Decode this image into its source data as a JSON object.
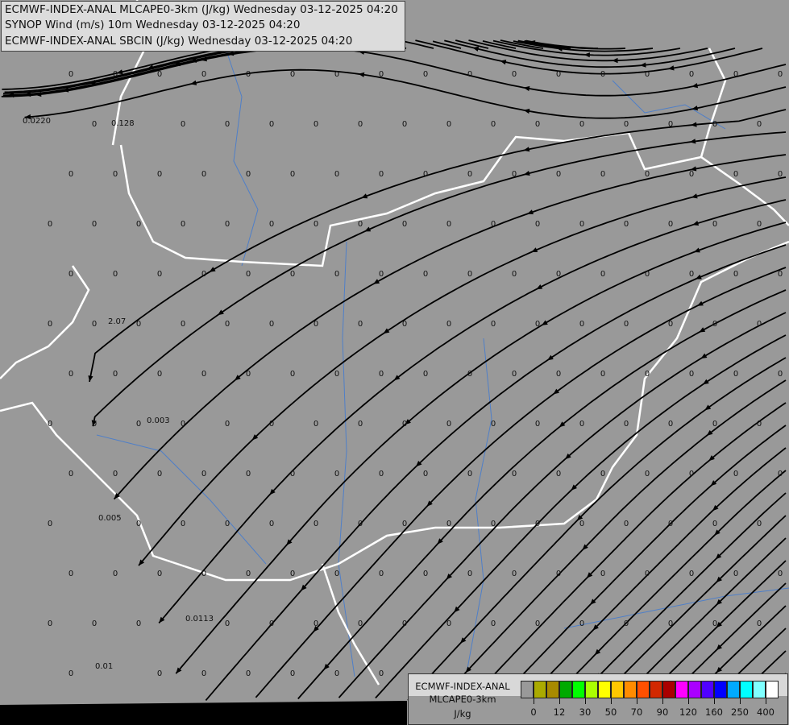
{
  "titles": [
    "ECMWF-INDEX-ANAL MLCAPE0-3km (J/kg) Wednesday 03-12-2025 04:20",
    "SYNOP Wind (m/s) 10m Wednesday 03-12-2025 04:20",
    "ECMWF-INDEX-ANAL SBCIN (J/kg) Wednesday 03-12-2025 04:20"
  ],
  "legend": {
    "model": "ECMWF-INDEX-ANAL",
    "parameter": "MLCAPE0-3km",
    "unit": "J/kg",
    "colors": [
      "#999999",
      "#aaaa00",
      "#a88a00",
      "#00aa00",
      "#00ff00",
      "#aaff00",
      "#ffff00",
      "#ffc800",
      "#ff8c00",
      "#ff5000",
      "#d22800",
      "#aa0000",
      "#ff00ff",
      "#aa00ff",
      "#5000ff",
      "#0000ff",
      "#00aaff",
      "#00ffff",
      "#80ffff",
      "#ffffff"
    ],
    "tick_labels": [
      "0",
      "12",
      "30",
      "50",
      "70",
      "90",
      "120",
      "160",
      "250",
      "400"
    ]
  },
  "map": {
    "background": "#999999",
    "border_color": "#ffffff",
    "river_color": "#4f7fc8",
    "streamline_color": "#000000",
    "default_label": "0",
    "cin_labels": [
      "0.0220",
      "0.128",
      "2.07",
      "0.003",
      "0.005",
      "0.0113",
      "0.01"
    ]
  }
}
